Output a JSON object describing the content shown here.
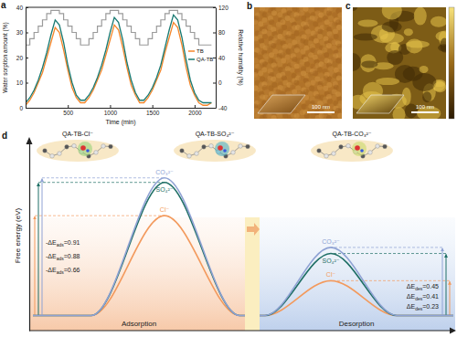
{
  "chart_data": [
    {
      "panel": "a",
      "type": "line",
      "x_label": "Time (min)",
      "y_label": "Water sorption amount (%)",
      "y2_label": "Relative humidity (%)",
      "x": [
        0,
        50,
        100,
        150,
        200,
        250,
        300,
        350,
        400,
        450,
        500,
        550,
        600,
        650,
        700,
        750,
        800,
        850,
        900,
        950,
        1000,
        1050,
        1100,
        1150,
        1200,
        1250,
        1300,
        1350,
        1400,
        1450,
        1500,
        1550,
        1600,
        1650,
        1700,
        1750,
        1800,
        1850,
        1900,
        1950,
        2000,
        2050,
        2100,
        2150,
        2200
      ],
      "xlim": [
        0,
        2250
      ],
      "xticks": [
        500,
        1000,
        1500,
        2000
      ],
      "ylim": [
        0,
        40
      ],
      "yticks": [
        0,
        10,
        20,
        30,
        40
      ],
      "y2lim": [
        -40,
        120
      ],
      "y2ticks": [
        -40,
        0,
        40,
        80,
        120
      ],
      "legend": "right",
      "series": [
        {
          "color": "#9b9b9b",
          "axis": "y2",
          "line_style": "step",
          "values": [
            60,
            70,
            80,
            90,
            100,
            110,
            115,
            115,
            110,
            100,
            90,
            80,
            70,
            60,
            60,
            70,
            80,
            90,
            100,
            110,
            115,
            115,
            110,
            100,
            90,
            80,
            70,
            60,
            60,
            70,
            80,
            90,
            100,
            110,
            115,
            115,
            110,
            100,
            90,
            80,
            70,
            60,
            60,
            60,
            60
          ]
        },
        {
          "name": "TB",
          "color": "#f5862a",
          "values": [
            1,
            3,
            6,
            10,
            14,
            20,
            26,
            32,
            30,
            23,
            15,
            8,
            4,
            2,
            2,
            4,
            7,
            11,
            15,
            21,
            27,
            33,
            31,
            24,
            16,
            9,
            5,
            2,
            2,
            4,
            7,
            11,
            15,
            22,
            28,
            34,
            32,
            25,
            16,
            9,
            5,
            2,
            1,
            1,
            2
          ]
        },
        {
          "name": "QA-TB",
          "color": "#197a72",
          "values": [
            2,
            4,
            7,
            11,
            16,
            22,
            29,
            35,
            33,
            26,
            17,
            10,
            5,
            3,
            3,
            5,
            8,
            12,
            17,
            23,
            30,
            36,
            34,
            27,
            18,
            11,
            6,
            3,
            3,
            5,
            8,
            12,
            17,
            24,
            31,
            37,
            35,
            28,
            19,
            11,
            6,
            3,
            2,
            2,
            2
          ]
        }
      ]
    },
    {
      "panel": "d",
      "type": "energy_profile",
      "y_label": "Free energy (eV)",
      "ylim": [
        -0.1,
        1.15
      ],
      "yticks": [],
      "tick_labels": false,
      "categories": [
        "Adsorption",
        "Desorption"
      ],
      "annotations": [
        "QA-TB-Cl⁻",
        "QA-TB-SO₄²⁻",
        "QA-TB-CO₃²⁻"
      ],
      "series": [
        {
          "name": "Cl⁻",
          "color": "#f39a5d",
          "values": [
            0.66,
            0.23
          ],
          "value_labels": [
            "-ΔEads=0.66",
            "ΔEdes=0.23"
          ]
        },
        {
          "name": "SO₄²⁻",
          "color": "#1f6f66",
          "values": [
            0.88,
            0.41
          ],
          "value_labels": [
            "-ΔEads=0.88",
            "ΔEdes=0.41"
          ]
        },
        {
          "name": "CO₃²⁻",
          "color": "#8fa2d4",
          "values": [
            0.91,
            0.45
          ],
          "value_labels": [
            "-ΔEads=0.91",
            "ΔEdes=0.45"
          ]
        }
      ]
    }
  ],
  "images": [
    {
      "panel": "b",
      "scale_bar": "100 nm"
    },
    {
      "panel": "c",
      "scale_bar": "100 nm"
    }
  ]
}
